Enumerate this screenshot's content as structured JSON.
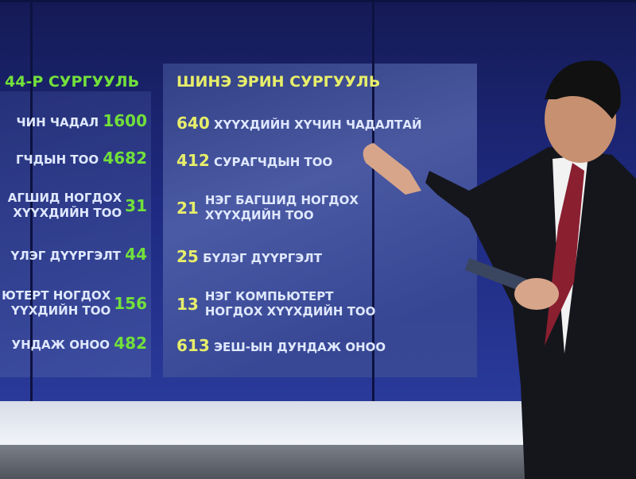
{
  "left_school": {
    "title": "44-Р СУРГУУЛЬ",
    "rows": [
      {
        "label": "ЧИН ЧАДАЛ",
        "value": "1600"
      },
      {
        "label": "ГЧДЫН ТОО",
        "value": "4682"
      },
      {
        "label": "АГШИД НОГДОХ",
        "label2": "ХҮҮХДИЙН ТОО",
        "value": "31"
      },
      {
        "label": "ҮЛЭГ ДҮҮРГЭЛТ",
        "value": "44"
      },
      {
        "label": "ЮТЕРТ НОГДОХ",
        "label2": "ҮҮХДИЙН ТОО",
        "value": "156"
      },
      {
        "label": "УНДАЖ ОНОО",
        "value": "482"
      }
    ]
  },
  "right_school": {
    "title": "ШИНЭ ЭРИН СУРГУУЛЬ",
    "rows": [
      {
        "value": "640",
        "label": "ХҮҮХДИЙН ХҮЧИН ЧАДАЛТАЙ"
      },
      {
        "value": "412",
        "label": "СУРАГЧДЫН ТОО"
      },
      {
        "value": "21",
        "label": "НЭГ БАГШИД НОГДОХ",
        "label2": "ХҮҮХДИЙН ТОО"
      },
      {
        "value": "25",
        "label": "БҮЛЭГ ДҮҮРГЭЛТ"
      },
      {
        "value": "13",
        "label": "НЭГ КОМПЬЮТЕРТ",
        "label2": "НОГДОХ ХҮҮХДИЙН ТОО"
      },
      {
        "value": "613",
        "label": "ЭЕШ-ЫН ДУНДАЖ ОНОО"
      }
    ]
  },
  "colors": {
    "left_value": "#72e03a",
    "right_value": "#e7ee6a",
    "label": "#dfe8ff",
    "screen": "#1e2a80"
  }
}
